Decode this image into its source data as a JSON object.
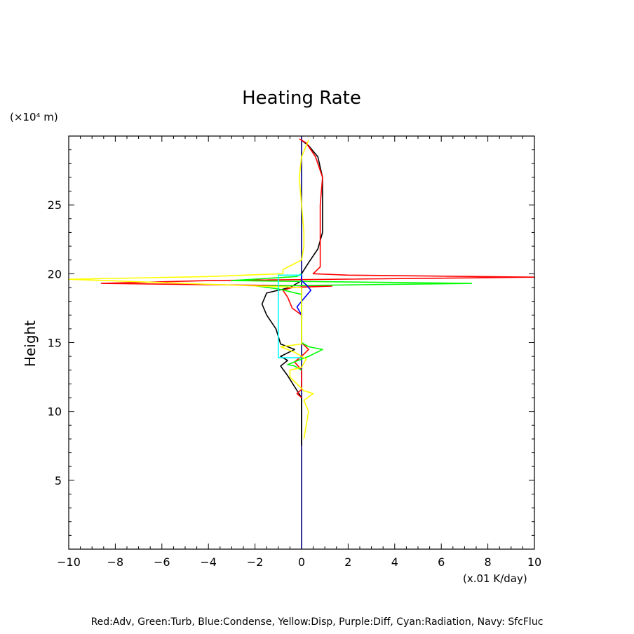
{
  "chart_data": {
    "type": "line",
    "title": "Heating Rate",
    "y_unit_label": "(×10⁴ m)",
    "ylabel": "Height",
    "x_unit_label": "(x.01 K/day)",
    "caption": "Red:Adv, Green:Turb, Blue:Condense, Yellow:Disp, Purple:Diff, Cyan:Radiation, Navy: SfcFluc",
    "xlim": [
      -10,
      10
    ],
    "ylim": [
      0,
      30
    ],
    "x_ticks": [
      -10,
      -8,
      -6,
      -4,
      -2,
      0,
      2,
      4,
      6,
      8,
      10
    ],
    "x_tick_labels": [
      "−10",
      "−8",
      "−6",
      "−4",
      "−2",
      "0",
      "2",
      "4",
      "6",
      "8",
      "10"
    ],
    "y_ticks": [
      5,
      10,
      15,
      20,
      25
    ],
    "y_tick_labels": [
      "5",
      "10",
      "15",
      "20",
      "25"
    ],
    "grid": false,
    "series": [
      {
        "name": "Navy",
        "color": "#000080",
        "points": [
          [
            0,
            0
          ],
          [
            0,
            30
          ]
        ]
      },
      {
        "name": "Black",
        "color": "#000000",
        "points": [
          [
            0,
            7.5
          ],
          [
            0,
            11.0
          ],
          [
            -0.3,
            11.8
          ],
          [
            -0.6,
            12.6
          ],
          [
            -0.9,
            13.3
          ],
          [
            -0.6,
            13.7
          ],
          [
            -0.9,
            14.0
          ],
          [
            -0.3,
            14.5
          ],
          [
            -0.9,
            14.9
          ],
          [
            -1.1,
            16.0
          ],
          [
            -1.5,
            17.0
          ],
          [
            -1.7,
            17.8
          ],
          [
            -1.5,
            18.6
          ],
          [
            -0.5,
            19.0
          ],
          [
            0,
            19.5
          ],
          [
            0,
            20.0
          ],
          [
            0.3,
            20.8
          ],
          [
            0.7,
            21.8
          ],
          [
            0.9,
            23.0
          ],
          [
            0.9,
            25.0
          ],
          [
            0.9,
            27.0
          ],
          [
            0.7,
            28.5
          ],
          [
            0.3,
            29.3
          ],
          [
            0,
            29.7
          ]
        ]
      },
      {
        "name": "Red:Adv",
        "color": "#ff0000",
        "points": [
          [
            0,
            11.0
          ],
          [
            -0.2,
            11.3
          ],
          [
            0,
            11.6
          ],
          [
            0,
            13.0
          ],
          [
            -0.3,
            13.6
          ],
          [
            0,
            14.0
          ],
          [
            0.3,
            14.5
          ],
          [
            0,
            15.0
          ],
          [
            0,
            17.0
          ],
          [
            -0.4,
            17.5
          ],
          [
            -0.6,
            18.3
          ],
          [
            -0.8,
            18.8
          ],
          [
            -0.4,
            19.0
          ],
          [
            1.3,
            19.1
          ],
          [
            -8.6,
            19.3
          ],
          [
            -4.0,
            19.5
          ],
          [
            10,
            19.75
          ],
          [
            2.0,
            19.9
          ],
          [
            0.5,
            20.0
          ],
          [
            0.8,
            20.5
          ],
          [
            0.8,
            21.5
          ],
          [
            0.8,
            23.0
          ],
          [
            0.8,
            25.0
          ],
          [
            0.9,
            27.0
          ],
          [
            0.6,
            28.5
          ],
          [
            0.2,
            29.5
          ],
          [
            -0.1,
            29.8
          ]
        ]
      },
      {
        "name": "Green:Turb",
        "color": "#00ff00",
        "points": [
          [
            0,
            13.0
          ],
          [
            -0.3,
            13.3
          ],
          [
            -0.6,
            13.4
          ],
          [
            0.3,
            14.0
          ],
          [
            0.9,
            14.5
          ],
          [
            0.3,
            14.7
          ],
          [
            0,
            15.0
          ],
          [
            0,
            18.5
          ],
          [
            -1.0,
            18.9
          ],
          [
            -1.9,
            19.1
          ],
          [
            2.5,
            19.2
          ],
          [
            7.3,
            19.3
          ],
          [
            -3.0,
            19.5
          ],
          [
            -0.2,
            19.8
          ],
          [
            0,
            20.0
          ]
        ]
      },
      {
        "name": "Blue:Condense",
        "color": "#0000ff",
        "points": [
          [
            0,
            17.0
          ],
          [
            -0.2,
            17.6
          ],
          [
            0.1,
            18.2
          ],
          [
            0.4,
            18.8
          ],
          [
            0.2,
            19.2
          ],
          [
            0,
            19.5
          ],
          [
            0,
            20.0
          ]
        ]
      },
      {
        "name": "Yellow:Disp",
        "color": "#ffff00",
        "points": [
          [
            0.1,
            8.0
          ],
          [
            0.2,
            9.0
          ],
          [
            0.3,
            10.0
          ],
          [
            0.1,
            10.8
          ],
          [
            0.5,
            11.3
          ],
          [
            0.1,
            11.5
          ],
          [
            -0.2,
            12.0
          ],
          [
            -0.5,
            12.5
          ],
          [
            -0.5,
            13.0
          ],
          [
            0,
            13.2
          ],
          [
            0.2,
            13.8
          ],
          [
            -0.3,
            14.3
          ],
          [
            -0.9,
            14.7
          ],
          [
            0,
            14.9
          ],
          [
            0,
            16.0
          ],
          [
            0,
            17.0
          ],
          [
            0,
            19.0
          ],
          [
            -10,
            19.6
          ],
          [
            -4.0,
            19.8
          ],
          [
            -0.8,
            20.0
          ],
          [
            -0.8,
            20.3
          ],
          [
            0,
            21.0
          ],
          [
            0.1,
            22.0
          ],
          [
            0.1,
            23.0
          ],
          [
            0,
            25.0
          ],
          [
            -0.1,
            27.0
          ],
          [
            0,
            28.5
          ],
          [
            0.3,
            29.7
          ]
        ]
      },
      {
        "name": "Cyan:Radiation",
        "color": "#00ffff",
        "points": [
          [
            0,
            13.9
          ],
          [
            -1.0,
            13.9
          ],
          [
            -1.0,
            17.5
          ],
          [
            -1.0,
            19.9
          ],
          [
            0,
            19.9
          ]
        ]
      }
    ]
  }
}
